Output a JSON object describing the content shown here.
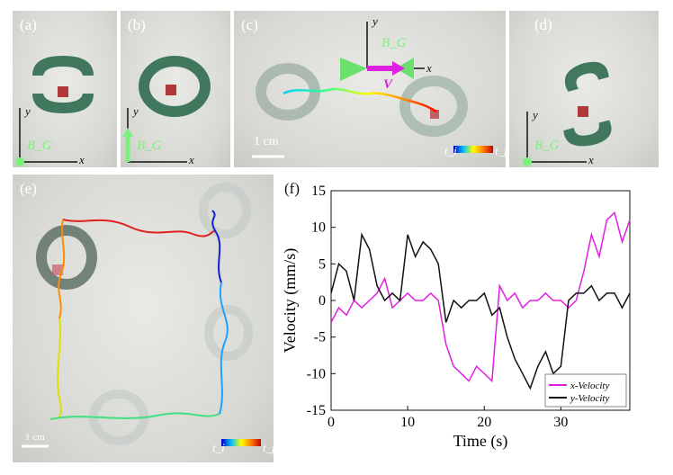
{
  "panels": {
    "a": {
      "label": "(a)",
      "field": "B_G",
      "axis_x": "x",
      "axis_y": "y"
    },
    "b": {
      "label": "(b)",
      "field": "B_G",
      "axis_x": "x",
      "axis_y": "y"
    },
    "c": {
      "label": "(c)",
      "field": "B_G",
      "velocity": "V",
      "axis_x": "x",
      "axis_y": "y",
      "scale_bar": "1 cm",
      "colorbar_start": "t_i",
      "colorbar_end": "t_f"
    },
    "d": {
      "label": "(d)",
      "field": "B_G",
      "axis_x": "x",
      "axis_y": "y"
    },
    "e": {
      "label": "(e)",
      "scale_bar": "1 cm",
      "colorbar_start": "t_i",
      "colorbar_end": "t_f"
    },
    "f": {
      "label": "(f)"
    }
  },
  "colors": {
    "robot_green": "#2f6b4f",
    "magenta": "#e020e0",
    "field_green": "#7cf07c"
  },
  "chart_data": {
    "type": "line",
    "xlabel": "Time (s)",
    "ylabel": "Velocity (mm/s)",
    "xlim": [
      0,
      39
    ],
    "ylim": [
      -15,
      15
    ],
    "xticks": [
      0,
      10,
      20,
      30
    ],
    "yticks": [
      15,
      10,
      5,
      0,
      -5,
      -10,
      -15
    ],
    "legend_position": "bottom-right",
    "series": [
      {
        "name": "x-Velocity",
        "color": "#e020e0",
        "x": [
          0,
          1,
          2,
          3,
          4,
          5,
          6,
          7,
          8,
          9,
          10,
          11,
          12,
          13,
          14,
          15,
          16,
          17,
          18,
          19,
          20,
          21,
          22,
          23,
          24,
          25,
          26,
          27,
          28,
          29,
          30,
          31,
          32,
          33,
          34,
          35,
          36,
          37,
          38,
          39
        ],
        "y": [
          -3,
          -1,
          -2,
          0,
          -1,
          0,
          1,
          3,
          -1,
          0,
          1,
          0,
          0,
          1,
          0,
          -6,
          -9,
          -10,
          -11,
          -9,
          -10,
          -11,
          2,
          0,
          1,
          -1,
          0,
          0,
          1,
          0,
          0,
          -1,
          0,
          4,
          9,
          6,
          11,
          12,
          8,
          11
        ]
      },
      {
        "name": "y-Velocity",
        "color": "#111111",
        "x": [
          0,
          1,
          2,
          3,
          4,
          5,
          6,
          7,
          8,
          9,
          10,
          11,
          12,
          13,
          14,
          15,
          16,
          17,
          18,
          19,
          20,
          21,
          22,
          23,
          24,
          25,
          26,
          27,
          28,
          29,
          30,
          31,
          32,
          33,
          34,
          35,
          36,
          37,
          38,
          39
        ],
        "y": [
          1,
          5,
          4,
          0,
          9,
          7,
          2,
          0,
          1,
          0,
          9,
          6,
          8,
          7,
          5,
          -3,
          0,
          -1,
          0,
          0,
          1,
          -2,
          -1,
          -5,
          -8,
          -10,
          -12,
          -9,
          -7,
          -10,
          -9,
          0,
          1,
          1,
          2,
          0,
          1,
          1,
          -1,
          1
        ]
      }
    ]
  }
}
